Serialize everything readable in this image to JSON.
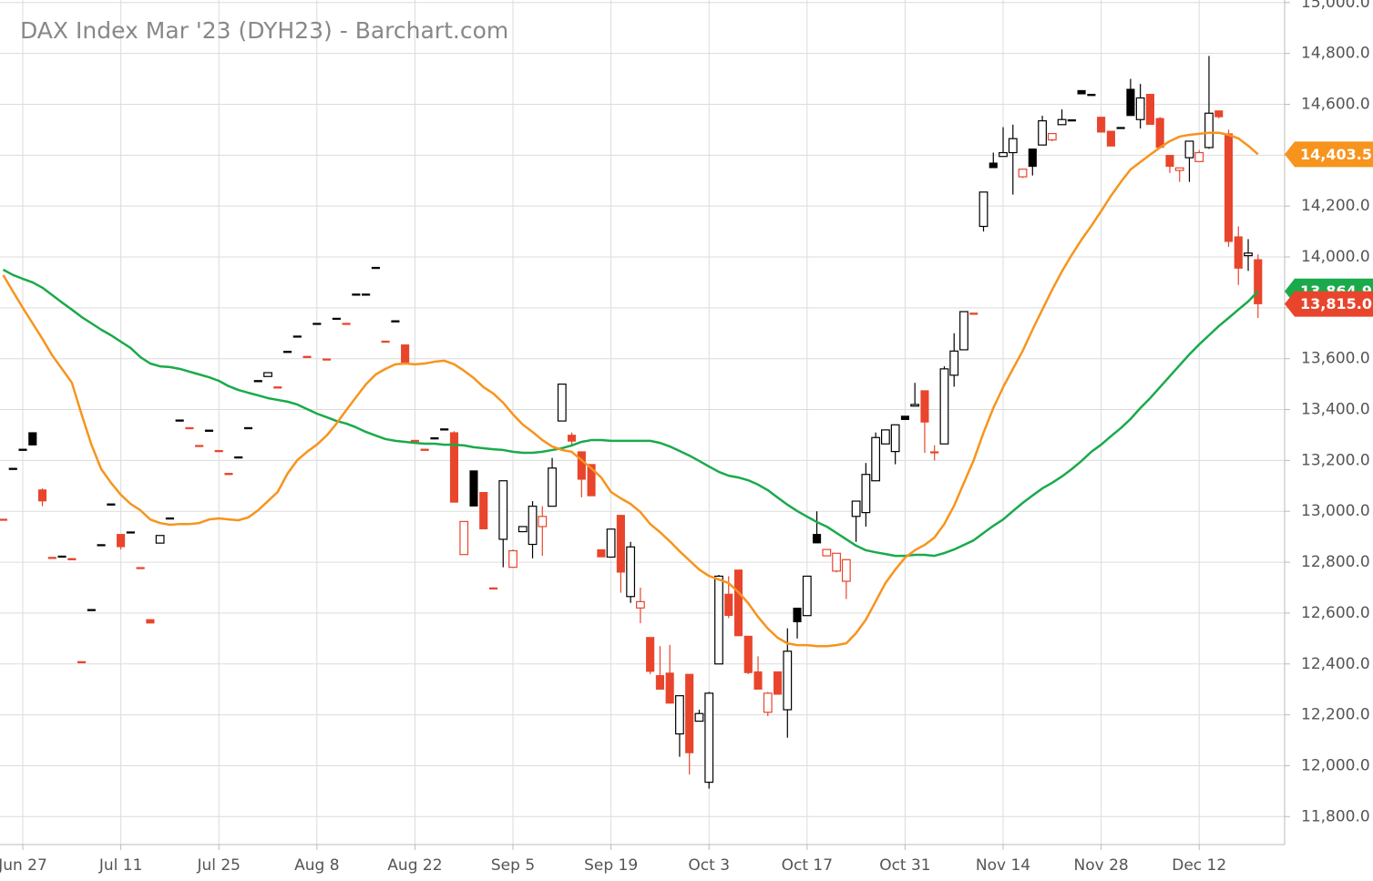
{
  "chart_data": {
    "type": "candlestick",
    "title": "DAX Index Mar '23 (DYH23) - Barchart.com",
    "categories": [
      null,
      null,
      "Jun 27",
      null,
      null,
      null,
      null,
      null,
      null,
      null,
      null,
      null,
      "Jul 11",
      null,
      null,
      null,
      null,
      null,
      null,
      null,
      null,
      null,
      "Jul 25",
      null,
      null,
      null,
      null,
      null,
      null,
      null,
      null,
      null,
      "Aug 8",
      null,
      null,
      null,
      null,
      null,
      null,
      null,
      null,
      null,
      "Aug 22",
      null,
      null,
      null,
      null,
      null,
      null,
      null,
      null,
      null,
      "Sep 5",
      null,
      null,
      null,
      null,
      null,
      null,
      null,
      null,
      null,
      "Sep 19",
      null,
      null,
      null,
      null,
      null,
      null,
      null,
      null,
      null,
      "Oct 3",
      null,
      null,
      null,
      null,
      null,
      null,
      null,
      null,
      null,
      "Oct 17",
      null,
      null,
      null,
      null,
      null,
      null,
      null,
      null,
      null,
      "Oct 31",
      null,
      null,
      null,
      null,
      null,
      null,
      null,
      null,
      null,
      "Nov 14",
      null,
      null,
      null,
      null,
      null,
      null,
      null,
      null,
      null,
      "Nov 28",
      null,
      null,
      null,
      null,
      null,
      null,
      null,
      null,
      null,
      "Dec 12",
      null,
      null,
      null,
      null,
      null,
      null
    ],
    "open": [
      12970,
      13170,
      13245,
      13310,
      13085,
      12820,
      12825,
      12815,
      12410,
      12615,
      12870,
      13030,
      12910,
      12920,
      12780,
      12575,
      12875,
      12975,
      13360,
      13330,
      13260,
      13320,
      13240,
      13150,
      13215,
      13330,
      13515,
      13530,
      13490,
      13630,
      13690,
      13610,
      13740,
      13600,
      13760,
      13740,
      13855,
      13855,
      13960,
      13670,
      13750,
      13655,
      13280,
      13245,
      13290,
      13325,
      13310,
      12830,
      13160,
      13075,
      12700,
      12890,
      12780,
      12920,
      12870,
      12940,
      13020,
      13355,
      13300,
      13235,
      13185,
      12850,
      12820,
      12985,
      12665,
      12620,
      12505,
      12355,
      12365,
      12125,
      12360,
      12175,
      11935,
      12400,
      12675,
      12770,
      12510,
      12370,
      12210,
      12370,
      12220,
      12620,
      12590,
      12910,
      12825,
      12765,
      12725,
      12980,
      12995,
      13120,
      13265,
      13235,
      13375,
      13415,
      13475,
      13235,
      13265,
      13535,
      13635,
      13780,
      14120,
      14370,
      14395,
      14410,
      14315,
      14425,
      14440,
      14460,
      14520,
      14540,
      14655,
      14640,
      14550,
      14495,
      14510,
      14660,
      14540,
      14640,
      14545,
      14400,
      14340,
      14390,
      14375,
      14430,
      14575,
      14485,
      14080,
      14005,
      13990
    ],
    "high": [
      12970,
      13170,
      13245,
      13310,
      13090,
      12820,
      12825,
      12815,
      12410,
      12615,
      12870,
      13030,
      12910,
      12920,
      12780,
      12575,
      12905,
      12975,
      13360,
      13330,
      13260,
      13320,
      13240,
      13150,
      13215,
      13330,
      13515,
      13545,
      13490,
      13630,
      13690,
      13610,
      13740,
      13600,
      13760,
      13740,
      13855,
      13855,
      13960,
      13670,
      13750,
      13655,
      13280,
      13245,
      13290,
      13325,
      13315,
      12960,
      13160,
      13075,
      12700,
      13120,
      12850,
      12940,
      13040,
      13020,
      13210,
      13500,
      13310,
      13235,
      13185,
      12850,
      12930,
      12985,
      12880,
      12700,
      12505,
      12470,
      12475,
      12275,
      12360,
      12220,
      12290,
      12750,
      12745,
      12770,
      12510,
      12430,
      12290,
      12370,
      12540,
      12620,
      12745,
      13000,
      12850,
      12835,
      12810,
      13040,
      13190,
      13310,
      13320,
      13340,
      13375,
      13505,
      13475,
      13260,
      13570,
      13700,
      13785,
      13780,
      14255,
      14410,
      14510,
      14520,
      14345,
      14425,
      14555,
      14485,
      14580,
      14540,
      14655,
      14640,
      14550,
      14495,
      14510,
      14700,
      14680,
      14640,
      14550,
      14400,
      14350,
      14455,
      14420,
      14790,
      14575,
      14500,
      14120,
      14070,
      14010
    ],
    "low": [
      12970,
      13170,
      13245,
      13260,
      13020,
      12820,
      12825,
      12815,
      12410,
      12615,
      12870,
      13030,
      12850,
      12920,
      12780,
      12560,
      12875,
      12975,
      13360,
      13330,
      13260,
      13320,
      13240,
      13150,
      13215,
      13330,
      13515,
      13530,
      13490,
      13630,
      13690,
      13610,
      13740,
      13600,
      13760,
      13740,
      13855,
      13855,
      13960,
      13670,
      13745,
      13585,
      13280,
      13245,
      13290,
      13325,
      13035,
      12830,
      13020,
      12930,
      12700,
      12780,
      12780,
      12920,
      12815,
      12825,
      13020,
      13355,
      13260,
      13055,
      13060,
      12820,
      12820,
      12680,
      12640,
      12560,
      12360,
      12300,
      12245,
      12035,
      11965,
      12175,
      11910,
      12400,
      12580,
      12510,
      12360,
      12300,
      12195,
      12280,
      12110,
      12500,
      12590,
      12875,
      12825,
      12760,
      12655,
      12880,
      12940,
      13120,
      13265,
      13185,
      13360,
      13415,
      13230,
      13200,
      13265,
      13490,
      13635,
      13780,
      14100,
      14350,
      14395,
      14245,
      14310,
      14320,
      14440,
      14455,
      14520,
      14540,
      14640,
      14640,
      14490,
      14435,
      14510,
      14555,
      14505,
      14520,
      14430,
      14330,
      14295,
      14295,
      14375,
      14425,
      14545,
      14040,
      13890,
      13945,
      13760
    ],
    "close": [
      12970,
      13170,
      13245,
      13260,
      13040,
      12820,
      12825,
      12815,
      12410,
      12615,
      12870,
      13030,
      12860,
      12920,
      12780,
      12560,
      12905,
      12975,
      13360,
      13330,
      13260,
      13320,
      13240,
      13150,
      13215,
      13330,
      13515,
      13545,
      13490,
      13630,
      13690,
      13610,
      13740,
      13600,
      13760,
      13740,
      13855,
      13855,
      13960,
      13670,
      13745,
      13585,
      13280,
      13245,
      13290,
      13325,
      13035,
      12960,
      13020,
      12930,
      12700,
      13120,
      12845,
      12940,
      13020,
      12980,
      13170,
      13500,
      13275,
      13125,
      13060,
      12820,
      12930,
      12760,
      12860,
      12645,
      12370,
      12300,
      12245,
      12275,
      12050,
      12205,
      12285,
      12745,
      12590,
      12510,
      12365,
      12300,
      12285,
      12280,
      12450,
      12565,
      12745,
      12875,
      12850,
      12835,
      12810,
      13040,
      13145,
      13290,
      13320,
      13340,
      13360,
      13420,
      13350,
      13230,
      13560,
      13630,
      13785,
      13780,
      14255,
      14350,
      14410,
      14465,
      14345,
      14355,
      14535,
      14485,
      14540,
      14540,
      14640,
      14640,
      14490,
      14435,
      14510,
      14555,
      14625,
      14520,
      14430,
      14355,
      14350,
      14455,
      14410,
      14565,
      14550,
      14060,
      13955,
      14015,
      13815
    ],
    "up_color": "#000000",
    "down_color": "#e8452c",
    "close_label": "13,815.0",
    "series": [
      {
        "color": "#1aaa4b",
        "tag_label": "13,864.9",
        "values": [
          13950,
          13929,
          13914,
          13900,
          13879,
          13850,
          13821,
          13793,
          13764,
          13739,
          13714,
          13692,
          13667,
          13642,
          13606,
          13581,
          13570,
          13567,
          13560,
          13549,
          13538,
          13527,
          13513,
          13492,
          13477,
          13466,
          13456,
          13445,
          13438,
          13431,
          13420,
          13402,
          13384,
          13370,
          13355,
          13345,
          13330,
          13312,
          13298,
          13284,
          13277,
          13273,
          13269,
          13266,
          13266,
          13262,
          13262,
          13259,
          13252,
          13248,
          13244,
          13241,
          13234,
          13230,
          13230,
          13234,
          13241,
          13248,
          13259,
          13273,
          13280,
          13280,
          13277,
          13277,
          13277,
          13277,
          13277,
          13269,
          13255,
          13237,
          13219,
          13198,
          13176,
          13155,
          13140,
          13133,
          13122,
          13105,
          13083,
          13054,
          13026,
          13001,
          12979,
          12958,
          12940,
          12915,
          12890,
          12865,
          12847,
          12839,
          12832,
          12825,
          12825,
          12829,
          12829,
          12825,
          12836,
          12850,
          12868,
          12886,
          12915,
          12943,
          12968,
          13001,
          13033,
          13062,
          13090,
          13112,
          13137,
          13166,
          13198,
          13234,
          13262,
          13295,
          13327,
          13363,
          13406,
          13445,
          13488,
          13531,
          13574,
          13617,
          13656,
          13692,
          13728,
          13760,
          13793,
          13825,
          13864.9
        ]
      },
      {
        "color": "#f7941d",
        "tag_label": "14,403.5",
        "values": [
          13929,
          13864,
          13800,
          13739,
          13678,
          13613,
          13560,
          13506,
          13381,
          13262,
          13166,
          13112,
          13065,
          13029,
          13004,
          12968,
          12954,
          12947,
          12950,
          12950,
          12954,
          12968,
          12972,
          12968,
          12965,
          12976,
          13004,
          13040,
          13076,
          13148,
          13201,
          13234,
          13262,
          13298,
          13345,
          13398,
          13449,
          13499,
          13538,
          13560,
          13578,
          13581,
          13578,
          13581,
          13588,
          13592,
          13578,
          13553,
          13524,
          13488,
          13463,
          13427,
          13381,
          13341,
          13312,
          13280,
          13255,
          13241,
          13234,
          13201,
          13169,
          13133,
          13076,
          13051,
          13029,
          12997,
          12950,
          12918,
          12882,
          12843,
          12807,
          12771,
          12746,
          12732,
          12718,
          12682,
          12639,
          12585,
          12539,
          12503,
          12481,
          12474,
          12474,
          12470,
          12470,
          12474,
          12481,
          12521,
          12574,
          12646,
          12718,
          12771,
          12818,
          12847,
          12868,
          12897,
          12950,
          13022,
          13112,
          13201,
          13309,
          13406,
          13488,
          13560,
          13631,
          13714,
          13793,
          13871,
          13943,
          14008,
          14068,
          14122,
          14180,
          14240,
          14294,
          14344,
          14373,
          14402,
          14430,
          14455,
          14473,
          14480,
          14484,
          14488,
          14488,
          14480,
          14466,
          14437,
          14403.5
        ]
      }
    ],
    "ylim": [
      11690,
      15010
    ],
    "yticks": [
      {
        "value": 11800,
        "label": "11,800.0"
      },
      {
        "value": 12000,
        "label": "12,000.0"
      },
      {
        "value": 12200,
        "label": "12,200.0"
      },
      {
        "value": 12400,
        "label": "12,400.0"
      },
      {
        "value": 12600,
        "label": "12,600.0"
      },
      {
        "value": 12800,
        "label": "12,800.0"
      },
      {
        "value": 13000,
        "label": "13,000.0"
      },
      {
        "value": 13200,
        "label": "13,200.0"
      },
      {
        "value": 13400,
        "label": "13,400.0"
      },
      {
        "value": 13600,
        "label": "13,600.0"
      },
      {
        "value": 13800,
        "label": "13,800.0"
      },
      {
        "value": 14000,
        "label": "14,000.0"
      },
      {
        "value": 14200,
        "label": "14,200.0"
      },
      {
        "value": 14400,
        "label": "14,400.0"
      },
      {
        "value": 14600,
        "label": "14,600.0"
      },
      {
        "value": 14800,
        "label": "14,800.0"
      },
      {
        "value": 15000,
        "label": "15,000.0"
      }
    ],
    "grid": true
  }
}
